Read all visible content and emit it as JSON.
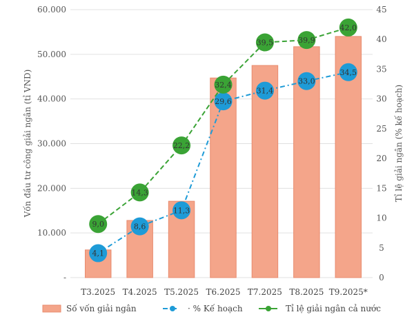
{
  "chart_data": {
    "type": "bar+line",
    "categories": [
      "T3.2025",
      "T4.2025",
      "T5.2025",
      "T6.2025",
      "T7.2025",
      "T8.2025",
      "T9.2025*"
    ],
    "left_axis": {
      "label": "Vốn đầu tư công giải ngân (tỉ VND)",
      "ylim": [
        0,
        60000
      ],
      "ticks": [
        "-",
        "10.000",
        "20.000",
        "30.000",
        "40.000",
        "50.000",
        "60.000"
      ],
      "tick_values": [
        0,
        10000,
        20000,
        30000,
        40000,
        50000,
        60000
      ]
    },
    "right_axis": {
      "label": "Tỉ lệ giải ngân (% kế hoạch)",
      "ylim": [
        0,
        45
      ],
      "ticks": [
        "0",
        "5",
        "10",
        "15",
        "20",
        "25",
        "30",
        "35",
        "40",
        "45"
      ],
      "tick_values": [
        0,
        5,
        10,
        15,
        20,
        25,
        30,
        35,
        40,
        45
      ]
    },
    "grid": true,
    "legend_position": "bottom",
    "series": [
      {
        "name": "Số vốn giải ngân",
        "kind": "bar",
        "axis": "left",
        "color": "#f4a58a",
        "values": [
          6200,
          12800,
          17100,
          44700,
          47500,
          51700,
          54000
        ]
      },
      {
        "name": "% Kế hoạch",
        "kind": "line",
        "axis": "right",
        "color": "#1e9bd7",
        "dash": "dashdot",
        "values": [
          4.1,
          8.6,
          11.3,
          29.6,
          31.4,
          33.0,
          34.5
        ],
        "labels": [
          "4,1",
          "8,6",
          "11,3",
          "29,6",
          "31,4",
          "33,0",
          "34,5"
        ]
      },
      {
        "name": "Tỉ lệ giải ngân cả nước",
        "kind": "line",
        "axis": "right",
        "color": "#3aa335",
        "dash": "dashed",
        "values": [
          9.0,
          14.3,
          22.2,
          32.4,
          39.5,
          39.9,
          42.0
        ],
        "labels": [
          "9,0",
          "14,3",
          "22,2",
          "32,4",
          "39,5",
          "39,9",
          "42,0"
        ]
      }
    ]
  }
}
